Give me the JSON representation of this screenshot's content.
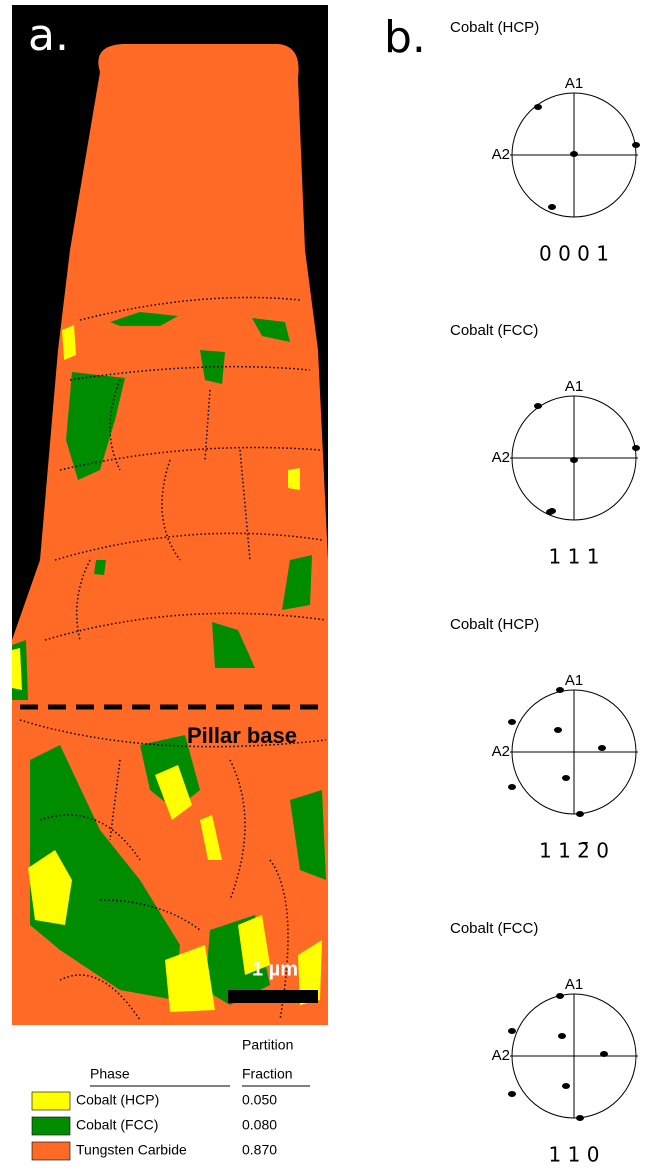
{
  "panel_a": {
    "label": "a.",
    "annotation": "Pillar base",
    "scale_bar": "1 µm"
  },
  "legend": {
    "phase_header": "Phase",
    "fraction_header": [
      "Partition",
      "Fraction"
    ],
    "rows": [
      {
        "phase": "Cobalt (HCP)",
        "fraction": "0.050",
        "color": "#ffff00"
      },
      {
        "phase": "Cobalt (FCC)",
        "fraction": "0.080",
        "color": "#008c00"
      },
      {
        "phase": "Tungsten Carbide",
        "fraction": "0.870",
        "color": "#ff6a26"
      }
    ]
  },
  "panel_b": {
    "label": "b.",
    "pole_figures": [
      {
        "title": "Cobalt (HCP)",
        "axis_1": "A1",
        "axis_2": "A2",
        "index": "0 0 0 1"
      },
      {
        "title": "Cobalt (FCC)",
        "axis_1": "A1",
        "axis_2": "A2",
        "index": "1 1 1"
      },
      {
        "title": "Cobalt (HCP)",
        "axis_1": "A1",
        "axis_2": "A2",
        "index": "1 1 2̄ 0"
      },
      {
        "title": "Cobalt (FCC)",
        "axis_1": "A1",
        "axis_2": "A2",
        "index": "1 1 0"
      }
    ]
  }
}
